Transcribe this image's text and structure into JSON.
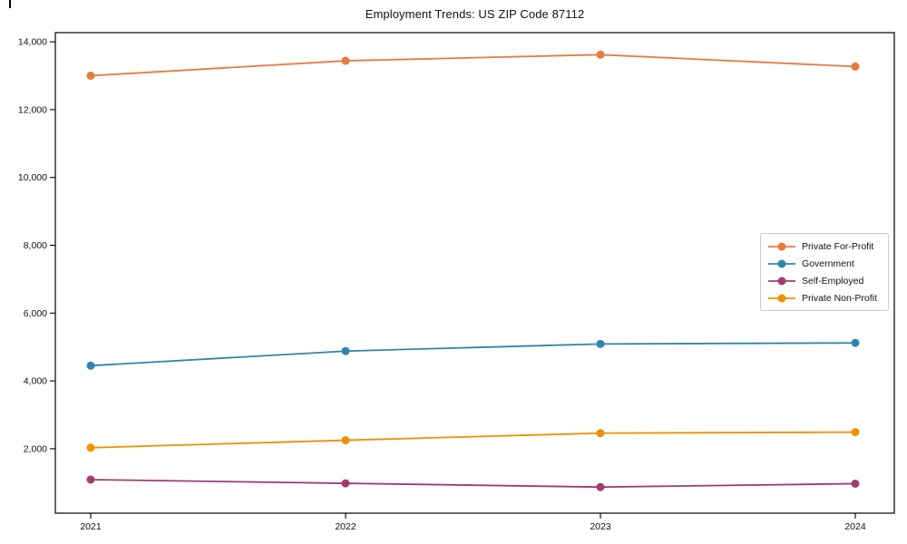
{
  "chart_data": {
    "type": "line",
    "title": "Employment Trends: US ZIP Code 87112",
    "xlabel": "",
    "ylabel": "",
    "categories": [
      "2021",
      "2022",
      "2023",
      "2024"
    ],
    "series": [
      {
        "name": "Private For-Profit",
        "color": "#e87a3d",
        "values": [
          13000,
          13440,
          13620,
          13270
        ]
      },
      {
        "name": "Government",
        "color": "#2e86ab",
        "values": [
          4450,
          4880,
          5090,
          5120
        ]
      },
      {
        "name": "Self-Employed",
        "color": "#a23b72",
        "values": [
          1090,
          980,
          870,
          970
        ]
      },
      {
        "name": "Private Non-Profit",
        "color": "#f18f01",
        "values": [
          2030,
          2250,
          2460,
          2490
        ]
      }
    ],
    "yticks": [
      2000,
      4000,
      6000,
      8000,
      10000,
      12000,
      14000
    ],
    "ytick_labels": [
      "2,000",
      "4,000",
      "6,000",
      "8,000",
      "10,000",
      "12,000",
      "14,000"
    ],
    "ylim": [
      100,
      14270
    ],
    "grid": false,
    "legend_position": "center-right",
    "axis_color": "#000000",
    "background_color": "#ffffff"
  }
}
